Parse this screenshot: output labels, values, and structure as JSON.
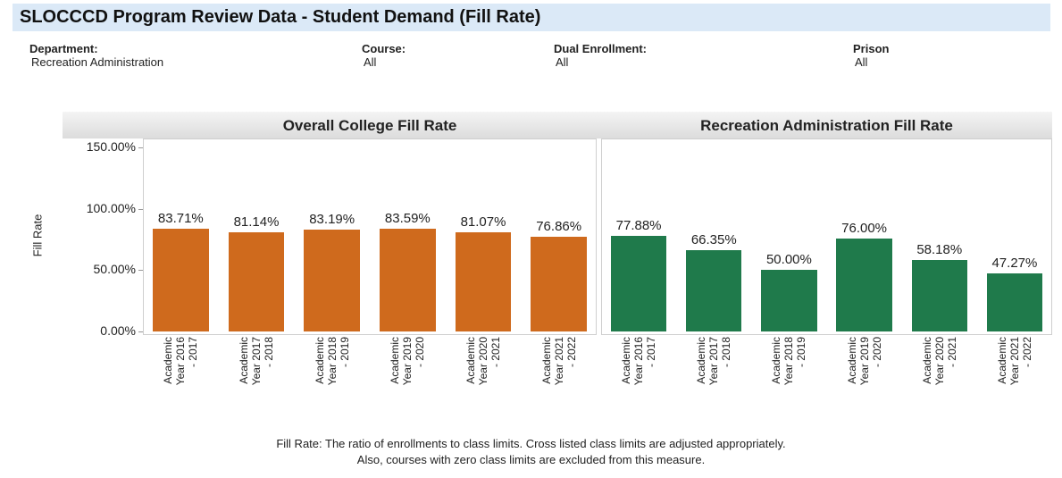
{
  "header": {
    "title": "SLOCCCD Program Review Data - Student Demand (Fill Rate)"
  },
  "filters": [
    {
      "label": "Department:",
      "value": "Recreation Administration"
    },
    {
      "label": "Course:",
      "value": "All"
    },
    {
      "label": "Dual Enrollment:",
      "value": "All"
    },
    {
      "label": "Prison",
      "value": "All"
    }
  ],
  "chart_data": [
    {
      "type": "bar",
      "title": "Overall College Fill Rate",
      "ylabel": "Fill Rate",
      "categories": [
        "Academic Year 2016 - 2017",
        "Academic Year 2017 - 2018",
        "Academic Year 2018 - 2019",
        "Academic Year 2019 - 2020",
        "Academic Year 2020 - 2021",
        "Academic Year 2021 - 2022"
      ],
      "values": [
        83.71,
        81.14,
        83.19,
        83.59,
        81.07,
        76.86
      ],
      "value_labels": [
        "83.71%",
        "81.14%",
        "83.19%",
        "83.59%",
        "81.07%",
        "76.86%"
      ],
      "color": "#cf6a1d",
      "ylim": [
        0,
        150
      ],
      "yticks": [
        {
          "value": 0,
          "label": "0.00%"
        },
        {
          "value": 50,
          "label": "50.00%"
        },
        {
          "value": 100,
          "label": "100.00%"
        },
        {
          "value": 150,
          "label": "150.00%"
        }
      ]
    },
    {
      "type": "bar",
      "title": "Recreation Administration Fill Rate",
      "categories": [
        "Academic Year 2016 - 2017",
        "Academic Year 2017 - 2018",
        "Academic Year 2018 - 2019",
        "Academic Year 2019 - 2020",
        "Academic Year 2020 - 2021",
        "Academic Year 2021 - 2022"
      ],
      "values": [
        77.88,
        66.35,
        50.0,
        76.0,
        58.18,
        47.27
      ],
      "value_labels": [
        "77.88%",
        "66.35%",
        "50.00%",
        "76.00%",
        "58.18%",
        "47.27%"
      ],
      "color": "#1f7a4b",
      "ylim": [
        0,
        150
      ]
    }
  ],
  "footnote": [
    "Fill Rate: The ratio of enrollments to class limits. Cross listed class limits are adjusted appropriately.",
    "Also, courses with zero class limits are excluded from this measure."
  ]
}
